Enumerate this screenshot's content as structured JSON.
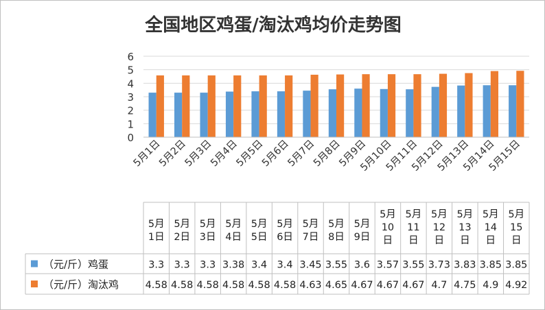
{
  "chart_data": {
    "type": "bar",
    "title": "全国地区鸡蛋/淘汰鸡均价走势图",
    "categories": [
      "5月1日",
      "5月2日",
      "5月3日",
      "5月4日",
      "5月5日",
      "5月6日",
      "5月7日",
      "5月8日",
      "5月9日",
      "5月10日",
      "5月11日",
      "5月12日",
      "5月13日",
      "5月14日",
      "5月15日"
    ],
    "table_headers": [
      [
        "5月",
        "1日"
      ],
      [
        "5月",
        "2日"
      ],
      [
        "5月",
        "3日"
      ],
      [
        "5月",
        "4日"
      ],
      [
        "5月",
        "5日"
      ],
      [
        "5月",
        "6日"
      ],
      [
        "5月",
        "7日"
      ],
      [
        "5月",
        "8日"
      ],
      [
        "5月",
        "9日"
      ],
      [
        "5月",
        "10",
        "日"
      ],
      [
        "5月",
        "11",
        "日"
      ],
      [
        "5月",
        "12",
        "日"
      ],
      [
        "5月",
        "13",
        "日"
      ],
      [
        "5月",
        "14",
        "日"
      ],
      [
        "5月",
        "15",
        "日"
      ]
    ],
    "series": [
      {
        "name": "（元/斤）鸡蛋",
        "color": "#5b9bd5",
        "values": [
          3.3,
          3.3,
          3.3,
          3.38,
          3.4,
          3.4,
          3.45,
          3.55,
          3.6,
          3.57,
          3.55,
          3.73,
          3.83,
          3.85,
          3.85
        ],
        "labels": [
          "3.3",
          "3.3",
          "3.3",
          "3.38",
          "3.4",
          "3.4",
          "3.45",
          "3.55",
          "3.6",
          "3.57",
          "3.55",
          "3.73",
          "3.83",
          "3.85",
          "3.85"
        ]
      },
      {
        "name": "（元/斤）淘汰鸡",
        "color": "#ed7d31",
        "values": [
          4.58,
          4.58,
          4.58,
          4.58,
          4.58,
          4.58,
          4.63,
          4.65,
          4.67,
          4.67,
          4.67,
          4.7,
          4.75,
          4.9,
          4.92
        ],
        "labels": [
          "4.58",
          "4.58",
          "4.58",
          "4.58",
          "4.58",
          "4.58",
          "4.63",
          "4.65",
          "4.67",
          "4.67",
          "4.67",
          "4.7",
          "4.75",
          "4.9",
          "4.92"
        ]
      }
    ],
    "ylim": [
      0,
      6
    ],
    "yticks": [
      "0",
      "1",
      "2",
      "3",
      "4",
      "5",
      "6"
    ],
    "grid": true,
    "legend": "data-table"
  }
}
